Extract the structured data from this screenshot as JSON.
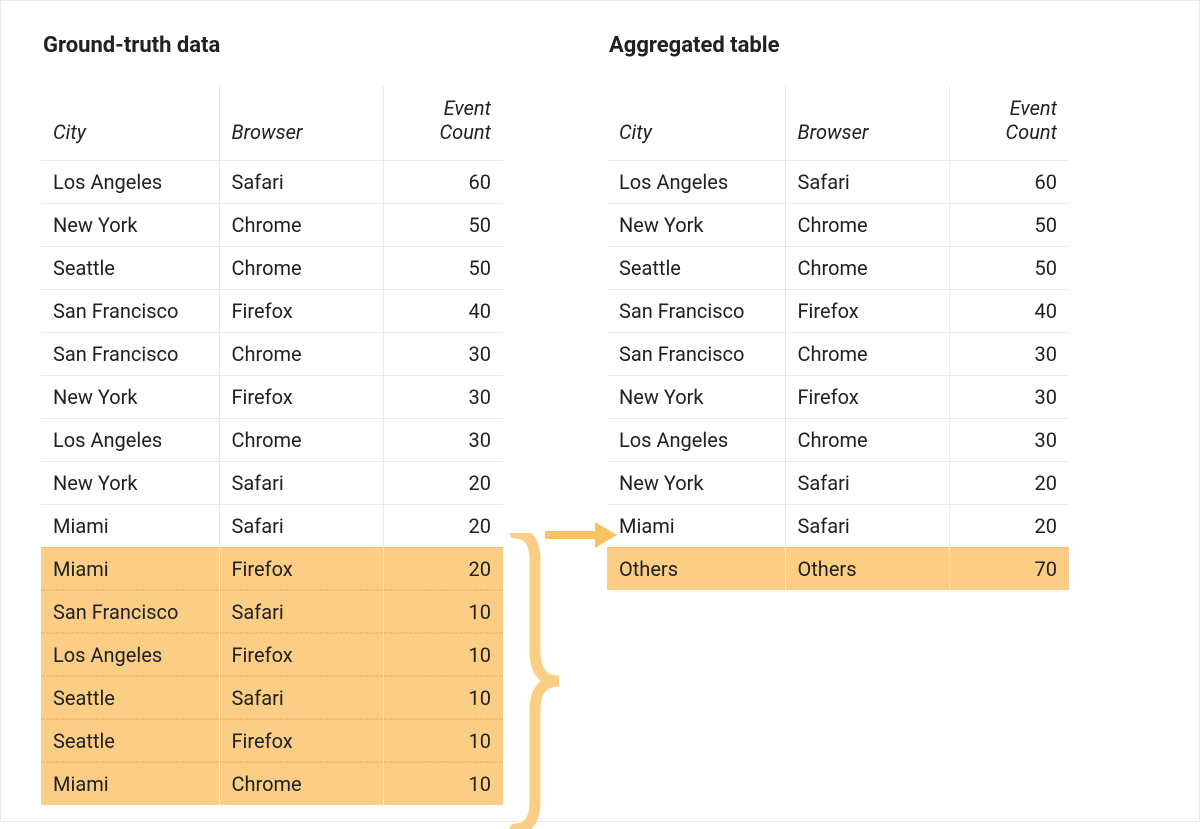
{
  "colors": {
    "highlight": "#fcce85",
    "highlight_border": "#f0c071",
    "grid": "#e8eaed",
    "text": "#202124",
    "arrow": "#f7c35f"
  },
  "left": {
    "title": "Ground-truth data",
    "columns": [
      "City",
      "Browser",
      "Event Count"
    ],
    "rows": [
      [
        "Los Angeles",
        "Safari",
        60
      ],
      [
        "New York",
        "Chrome",
        50
      ],
      [
        "Seattle",
        "Chrome",
        50
      ],
      [
        "San Francisco",
        "Firefox",
        40
      ],
      [
        "San Francisco",
        "Chrome",
        30
      ],
      [
        "New York",
        "Firefox",
        30
      ],
      [
        "Los Angeles",
        "Chrome",
        30
      ],
      [
        "New York",
        "Safari",
        20
      ],
      [
        "Miami",
        "Safari",
        20
      ],
      [
        "Miami",
        "Firefox",
        20
      ],
      [
        "San Francisco",
        "Safari",
        10
      ],
      [
        "Los Angeles",
        "Firefox",
        10
      ],
      [
        "Seattle",
        "Safari",
        10
      ],
      [
        "Seattle",
        "Firefox",
        10
      ],
      [
        "Miami",
        "Chrome",
        10
      ]
    ],
    "highlight_from_index": 9
  },
  "right": {
    "title": "Aggregated table",
    "columns": [
      "City",
      "Browser",
      "Event Count"
    ],
    "rows": [
      [
        "Los Angeles",
        "Safari",
        60
      ],
      [
        "New York",
        "Chrome",
        50
      ],
      [
        "Seattle",
        "Chrome",
        50
      ],
      [
        "San Francisco",
        "Firefox",
        40
      ],
      [
        "San Francisco",
        "Chrome",
        30
      ],
      [
        "New York",
        "Firefox",
        30
      ],
      [
        "Los Angeles",
        "Chrome",
        30
      ],
      [
        "New York",
        "Safari",
        20
      ],
      [
        "Miami",
        "Safari",
        20
      ],
      [
        "Others",
        "Others",
        70
      ]
    ],
    "highlight_from_index": 9
  }
}
